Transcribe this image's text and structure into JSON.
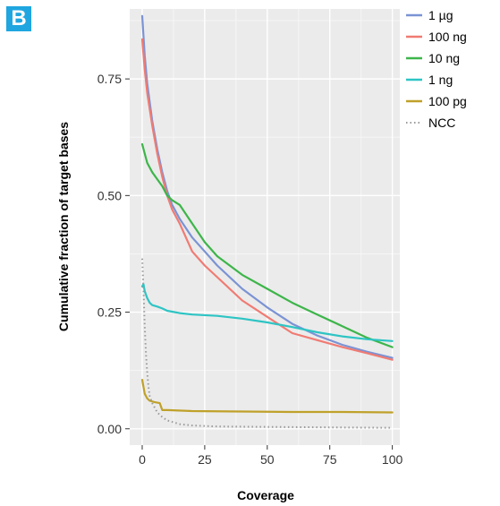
{
  "panel_label": "B",
  "chart_data": {
    "type": "line",
    "xlabel": "Coverage",
    "ylabel": "Cumulative fraction of target bases",
    "xlim": [
      -5,
      103
    ],
    "ylim": [
      -0.035,
      0.9
    ],
    "x_ticks": [
      0,
      25,
      50,
      75,
      100
    ],
    "x_tick_labels": [
      "0",
      "25",
      "50",
      "75",
      "100"
    ],
    "y_ticks": [
      0,
      0.25,
      0.5,
      0.75
    ],
    "y_tick_labels": [
      "0.00",
      "0.25",
      "0.50",
      "0.75"
    ],
    "grid": true,
    "legend_position": "top-right",
    "series": [
      {
        "name": "1 µg",
        "color": "#7b93d4",
        "style": "solid",
        "x": [
          0,
          1,
          2,
          4,
          6,
          8,
          10,
          12,
          15,
          20,
          25,
          30,
          40,
          50,
          60,
          70,
          80,
          90,
          100
        ],
        "y": [
          0.885,
          0.8,
          0.74,
          0.66,
          0.6,
          0.55,
          0.51,
          0.48,
          0.45,
          0.41,
          0.38,
          0.35,
          0.3,
          0.26,
          0.225,
          0.2,
          0.18,
          0.165,
          0.152
        ]
      },
      {
        "name": "100 ng",
        "color": "#f07b73",
        "style": "solid",
        "x": [
          0,
          1,
          2,
          4,
          6,
          8,
          10,
          12,
          15,
          20,
          25,
          30,
          40,
          50,
          60,
          70,
          80,
          90,
          100
        ],
        "y": [
          0.835,
          0.77,
          0.72,
          0.65,
          0.59,
          0.54,
          0.5,
          0.47,
          0.44,
          0.38,
          0.35,
          0.325,
          0.275,
          0.24,
          0.205,
          0.19,
          0.175,
          0.162,
          0.148
        ]
      },
      {
        "name": "10 ng",
        "color": "#3db54a",
        "style": "solid",
        "x": [
          0,
          1,
          2,
          4,
          6,
          8,
          10,
          12,
          15,
          20,
          25,
          30,
          40,
          50,
          60,
          70,
          80,
          90,
          100
        ],
        "y": [
          0.61,
          0.59,
          0.57,
          0.55,
          0.535,
          0.52,
          0.5,
          0.49,
          0.48,
          0.44,
          0.4,
          0.37,
          0.33,
          0.3,
          0.27,
          0.245,
          0.22,
          0.195,
          0.175
        ]
      },
      {
        "name": "1 ng",
        "color": "#2ec4c4",
        "style": "solid",
        "x": [
          0,
          0.5,
          1,
          2,
          3,
          4,
          6,
          8,
          10,
          15,
          20,
          30,
          40,
          50,
          60,
          70,
          80,
          90,
          100
        ],
        "y": [
          0.305,
          0.31,
          0.295,
          0.28,
          0.27,
          0.265,
          0.262,
          0.258,
          0.253,
          0.248,
          0.245,
          0.242,
          0.236,
          0.228,
          0.218,
          0.207,
          0.198,
          0.192,
          0.188
        ]
      },
      {
        "name": "100 pg",
        "color": "#bfa12a",
        "style": "solid",
        "x": [
          0,
          1,
          2,
          3,
          5,
          7,
          8,
          10,
          20,
          40,
          60,
          80,
          100
        ],
        "y": [
          0.105,
          0.075,
          0.065,
          0.06,
          0.057,
          0.055,
          0.04,
          0.04,
          0.038,
          0.037,
          0.036,
          0.036,
          0.035
        ]
      },
      {
        "name": "NCC",
        "color": "#9a9a9a",
        "style": "dotted",
        "x": [
          0,
          0.5,
          1,
          1.5,
          2,
          2.5,
          3,
          4,
          5,
          6,
          8,
          10,
          15,
          20,
          30,
          50,
          75,
          100
        ],
        "y": [
          0.365,
          0.3,
          0.22,
          0.16,
          0.12,
          0.09,
          0.07,
          0.055,
          0.045,
          0.035,
          0.025,
          0.018,
          0.01,
          0.007,
          0.005,
          0.004,
          0.003,
          0.002
        ]
      }
    ]
  }
}
